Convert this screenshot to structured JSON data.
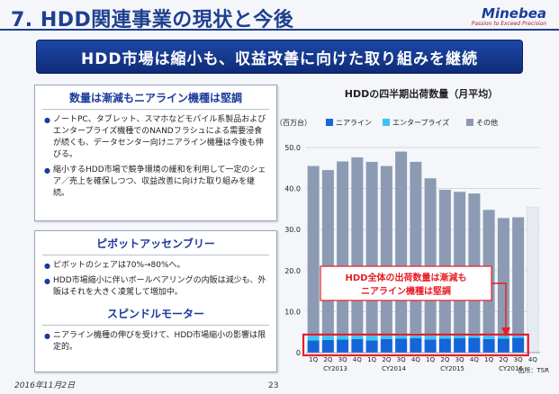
{
  "header": {
    "title": "7. HDD関連事業の現状と今後",
    "logo_name": "Minebea",
    "logo_tagline": "Passion to Exceed Precision"
  },
  "banner": "HDD市場は縮小も、収益改善に向けた取り組みを継続",
  "left_box_1": {
    "heading": "数量は漸減もニアライン機種は堅調",
    "bullets": [
      "ノートPC、タブレット、スマホなどモバイル系製品およびエンタープライズ機種でのNANDフラシュによる需要浸食が続くも、データセンター向けニアライン機種は今後も伸びる。",
      "縮小するHDD市場で競争環境の緩和を利用して一定のシェア／売上を確保しつつ、収益改善に向けた取り組みを継続。"
    ]
  },
  "left_box_2": {
    "heading_1": "ピボットアッセンブリー",
    "bullets_1": [
      "ピボットのシェアは70%→80%へ。",
      "HDD市場縮小に伴いボールベアリングの内販は減少も、外販はそれを大きく凌駕して増加中。"
    ],
    "heading_2": "スピンドルモーター",
    "bullets_2": [
      "ニアライン機種の伸びを受けて、HDD市場縮小の影響は限定的。"
    ]
  },
  "footer": {
    "date": "2016年11月2日",
    "page": "23"
  },
  "chart_data": {
    "type": "bar",
    "stacked": true,
    "title": "HDDの四半期出荷数量（月平均）",
    "ylabel": "（百万台）",
    "ylim": [
      0,
      50
    ],
    "yticks": [
      "0",
      "10.0",
      "20.0",
      "30.0",
      "40.0",
      "50.0"
    ],
    "source": "出所：TSR",
    "categories": [
      "1Q",
      "2Q",
      "3Q",
      "4Q",
      "1Q",
      "2Q",
      "3Q",
      "4Q",
      "1Q",
      "2Q",
      "3Q",
      "4Q",
      "1Q",
      "2Q",
      "3Q",
      "4Q"
    ],
    "year_labels": [
      "CY2013",
      "CY2014",
      "CY2015",
      "CY2016"
    ],
    "series": [
      {
        "name": "ニアライン",
        "color": "#1565d8",
        "values": [
          3.0,
          3.1,
          3.2,
          3.3,
          3.0,
          3.3,
          3.4,
          3.5,
          3.2,
          3.4,
          3.5,
          3.6,
          3.3,
          3.4,
          3.6,
          0
        ]
      },
      {
        "name": "エンタープライズ",
        "color": "#3fc3f3",
        "values": [
          1.2,
          1.2,
          1.3,
          1.3,
          1.2,
          1.3,
          1.3,
          1.3,
          1.2,
          1.2,
          1.2,
          1.2,
          1.1,
          1.1,
          1.1,
          0
        ]
      },
      {
        "name": "その他",
        "color": "#8c9bb3",
        "values": [
          41.3,
          40.2,
          42.1,
          43.0,
          42.3,
          40.9,
          44.3,
          41.7,
          38.1,
          35.1,
          34.5,
          34.0,
          30.4,
          28.3,
          28.3,
          0
        ]
      }
    ],
    "forecast": {
      "index": 15,
      "total": 35.5,
      "color": "#e6ebf2"
    },
    "annotation": {
      "line1": "HDD全体の出荷数量は漸減も",
      "line2": "ニアライン機種は堅調",
      "color": "#e81d25"
    }
  }
}
